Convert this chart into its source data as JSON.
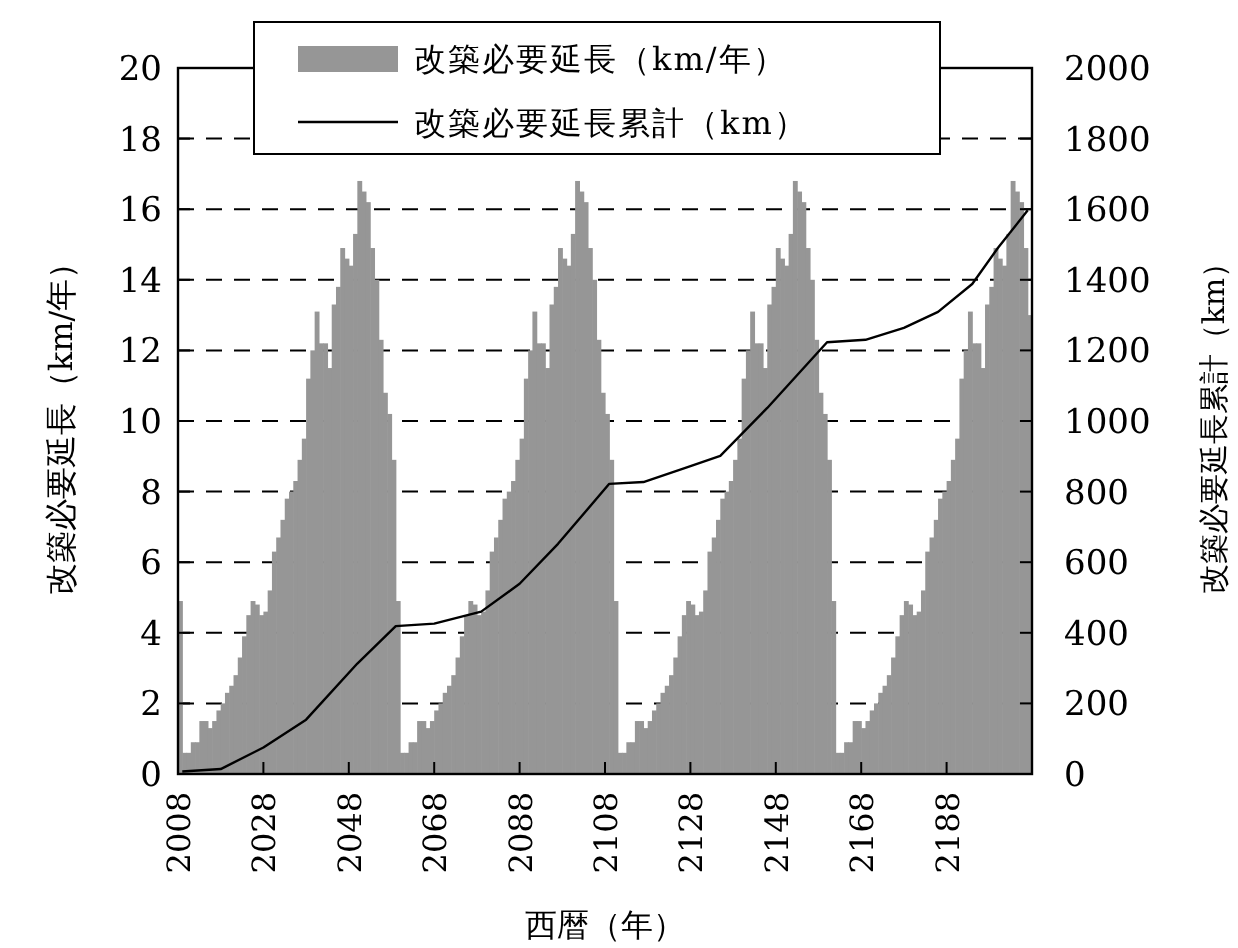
{
  "chart_data": {
    "type": "bar",
    "xlabel": "西暦（年）",
    "ylabel": "改築必要延長（km/年）",
    "y2label": "改築必要延長累計（km）",
    "xlim": [
      2008,
      2208
    ],
    "xticks": [
      2008,
      2028,
      2048,
      2068,
      2088,
      2108,
      2128,
      2148,
      2168,
      2188
    ],
    "ylim": [
      0,
      20
    ],
    "yticks": [
      0,
      2,
      4,
      6,
      8,
      10,
      12,
      14,
      16,
      18,
      20
    ],
    "y2lim": [
      0,
      2000
    ],
    "y2ticks": [
      0,
      200,
      400,
      600,
      800,
      1000,
      1200,
      1400,
      1600,
      1800,
      2000
    ],
    "grid": "y",
    "legend": "top",
    "series": [
      {
        "name": "改築必要延長（km/年）",
        "color": "#969696",
        "x": [
          2008,
          2009,
          2010,
          2011,
          2012,
          2013,
          2014,
          2015,
          2016,
          2017,
          2018,
          2019,
          2020,
          2021,
          2022,
          2023,
          2024,
          2025,
          2026,
          2027,
          2028,
          2029,
          2030,
          2031,
          2032,
          2033,
          2034,
          2035,
          2036,
          2037,
          2038,
          2039,
          2040,
          2041,
          2042,
          2043,
          2044,
          2045,
          2046,
          2047,
          2048,
          2049,
          2050,
          2051,
          2052,
          2053,
          2054,
          2055,
          2056,
          2057,
          2058,
          2059,
          2060,
          2061,
          2062,
          2063,
          2064,
          2065,
          2066,
          2067,
          2068,
          2069,
          2070,
          2071,
          2072,
          2073,
          2074,
          2075,
          2076,
          2077,
          2078,
          2079,
          2080,
          2081,
          2082,
          2083,
          2084,
          2085,
          2086,
          2087,
          2088,
          2089,
          2090,
          2091,
          2092,
          2093,
          2094,
          2095,
          2096,
          2097,
          2098,
          2099,
          2100,
          2101,
          2102,
          2103,
          2104,
          2105,
          2106,
          2107,
          2108,
          2109,
          2110,
          2111,
          2112,
          2113,
          2114,
          2115,
          2116,
          2117,
          2118,
          2119,
          2120,
          2121,
          2122,
          2123,
          2124,
          2125,
          2126,
          2127,
          2128,
          2129,
          2130,
          2131,
          2132,
          2133,
          2134,
          2135,
          2136,
          2137,
          2138,
          2139,
          2140,
          2141,
          2142,
          2143,
          2144,
          2145,
          2146,
          2147,
          2148,
          2149,
          2150,
          2151,
          2152,
          2153,
          2154,
          2155,
          2156,
          2157,
          2158,
          2159,
          2160,
          2161,
          2162,
          2163,
          2164,
          2165,
          2166,
          2167,
          2168,
          2169,
          2170,
          2171,
          2172,
          2173,
          2174,
          2175,
          2176,
          2177,
          2178,
          2179,
          2180,
          2181,
          2182,
          2183,
          2184,
          2185,
          2186,
          2187,
          2188,
          2189,
          2190,
          2191,
          2192,
          2193,
          2194,
          2195,
          2196,
          2197,
          2198,
          2199,
          2200,
          2201,
          2202,
          2203,
          2204,
          2205,
          2206,
          2207
        ],
        "values": [
          4.9,
          0.6,
          0.6,
          0.9,
          0.9,
          1.5,
          1.5,
          1.3,
          1.5,
          1.8,
          2.0,
          2.3,
          2.5,
          2.8,
          3.3,
          3.9,
          4.5,
          4.9,
          4.8,
          4.5,
          4.6,
          5.2,
          6.3,
          6.7,
          7.2,
          7.8,
          8.0,
          8.3,
          8.9,
          9.5,
          11.2,
          12.0,
          13.1,
          12.2,
          12.2,
          11.5,
          13.3,
          13.8,
          14.9,
          14.6,
          14.4,
          15.3,
          16.8,
          16.5,
          16.2,
          14.9,
          14.0,
          12.3,
          10.8,
          10.2,
          8.9,
          4.9,
          0.6,
          0.6,
          0.9,
          0.9,
          1.5,
          1.5,
          1.3,
          1.5,
          1.8,
          2.0,
          2.3,
          2.5,
          2.8,
          3.3,
          3.9,
          4.5,
          4.9,
          4.8,
          4.5,
          4.6,
          5.2,
          6.3,
          6.7,
          7.2,
          7.8,
          8.0,
          8.3,
          8.9,
          9.5,
          11.2,
          12.0,
          13.1,
          12.2,
          12.2,
          11.5,
          13.3,
          13.8,
          14.9,
          14.6,
          14.4,
          15.3,
          16.8,
          16.5,
          16.2,
          14.9,
          14.0,
          12.3,
          10.8,
          10.2,
          8.9,
          4.9,
          0.6,
          0.6,
          0.9,
          0.9,
          1.5,
          1.5,
          1.3,
          1.5,
          1.8,
          2.0,
          2.3,
          2.5,
          2.8,
          3.3,
          3.9,
          4.5,
          4.9,
          4.8,
          4.5,
          4.6,
          5.2,
          6.3,
          6.7,
          7.2,
          7.8,
          8.0,
          8.3,
          8.9,
          9.5,
          11.2,
          12.0,
          13.1,
          12.2,
          12.2,
          11.5,
          13.3,
          13.8,
          14.9,
          14.6,
          14.4,
          15.3,
          16.8,
          16.5,
          16.2,
          14.9,
          14.0,
          12.3,
          10.8,
          10.2,
          8.9,
          4.9,
          0.6,
          0.6,
          0.9,
          0.9,
          1.5,
          1.5,
          1.3,
          1.5,
          1.8,
          2.0,
          2.3,
          2.5,
          2.8,
          3.3,
          3.9,
          4.5,
          4.9,
          4.8,
          4.5,
          4.6,
          5.2,
          6.3,
          6.7,
          7.2,
          7.8,
          8.0,
          8.3,
          8.9,
          9.5,
          11.2,
          12.0,
          13.1,
          12.2,
          12.2,
          11.5,
          13.3,
          13.8,
          14.9,
          14.6,
          14.4,
          15.3,
          16.8,
          16.5,
          16.2,
          14.9,
          13.0
        ]
      },
      {
        "name": "改築必要延長累計（km）",
        "type": "line",
        "axis": "y2",
        "color": "#000000",
        "x": [
          2009,
          2018,
          2028,
          2038,
          2050,
          2059,
          2068,
          2079,
          2088,
          2097,
          2109,
          2117,
          2127,
          2135,
          2146,
          2160,
          2169,
          2178,
          2186,
          2194,
          2200,
          2207
        ],
        "values": [
          7,
          14,
          75,
          154,
          313,
          419,
          426,
          460,
          539,
          652,
          822,
          827,
          868,
          901,
          1037,
          1223,
          1230,
          1264,
          1309,
          1388,
          1490,
          1597
        ]
      }
    ]
  }
}
